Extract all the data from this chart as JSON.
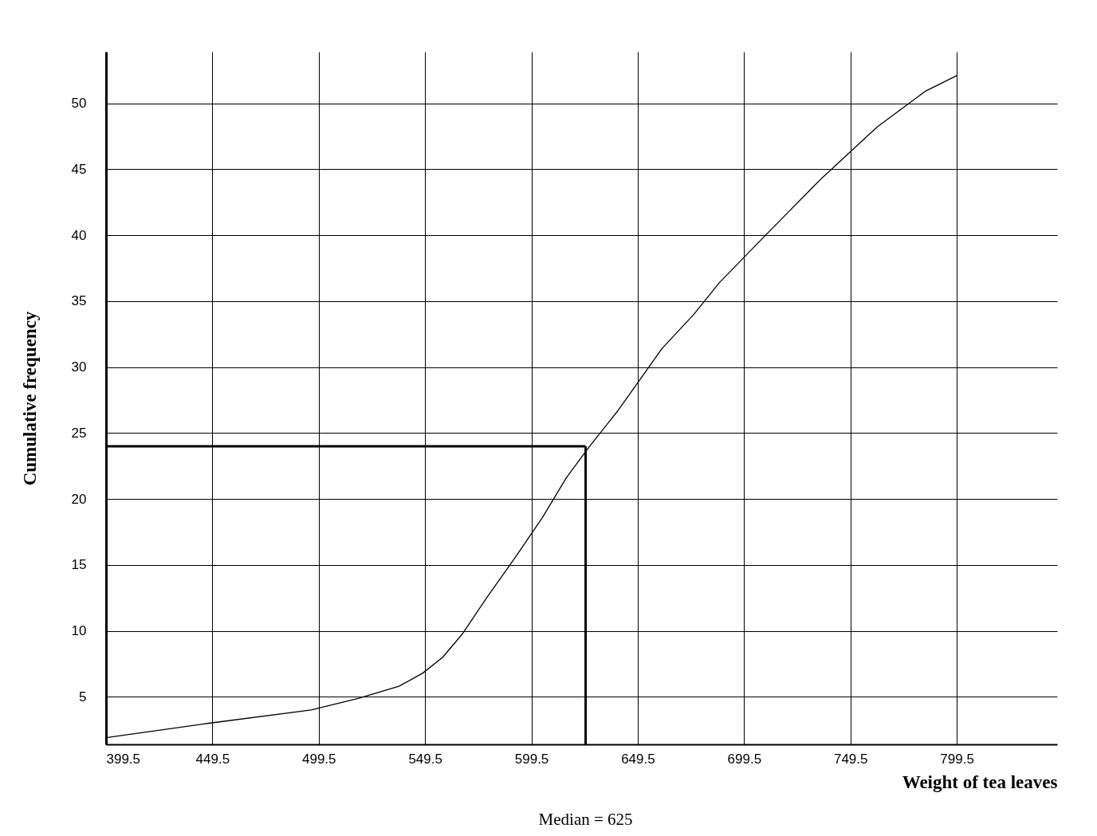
{
  "chart_data": {
    "type": "line",
    "xlabel": "Weight of tea leaves",
    "ylabel": "Cumulative frequency",
    "xlim": [
      399.5,
      846.7
    ],
    "ylim": [
      1.4,
      53.9
    ],
    "xticks": [
      399.5,
      449.5,
      499.5,
      549.5,
      599.5,
      649.5,
      699.5,
      749.5,
      799.5
    ],
    "yticks": [
      5,
      10,
      15,
      20,
      25,
      30,
      35,
      40,
      45,
      50
    ],
    "grid": true,
    "marker": "none",
    "line_style": "solid",
    "series": [
      {
        "color": "#000000",
        "x": [
          399.5,
          447.9,
          495.9,
          518.4,
          537.2,
          548.4,
          557.8,
          567.2,
          578.4,
          591.6,
          604.7,
          615.9,
          626.4,
          640.2,
          660.9,
          675.9,
          687.9,
          709.6,
          735.9,
          762.1,
          784.6,
          799.5
        ],
        "values": [
          1.9,
          3.0,
          4.0,
          4.9,
          5.8,
          6.8,
          8.0,
          9.8,
          12.5,
          15.5,
          18.6,
          21.6,
          23.9,
          26.7,
          31.4,
          34.0,
          36.4,
          40.0,
          44.3,
          48.2,
          50.9,
          52.1
        ]
      }
    ],
    "ref_lines": [
      {
        "axis": "y",
        "value": 24
      },
      {
        "axis": "x",
        "value": 625
      }
    ],
    "annotations": [
      "Median = 625"
    ]
  }
}
